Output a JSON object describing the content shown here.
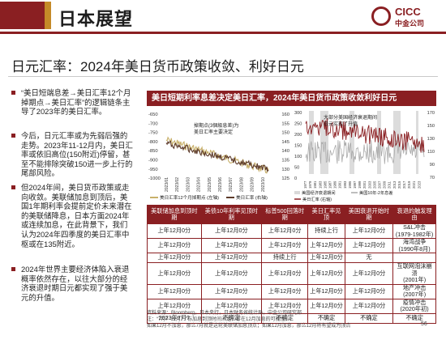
{
  "header": {
    "title": "日本展望",
    "logo_en": "CICC",
    "logo_cn": "中金公司"
  },
  "subtitle": "日元汇率：2024年美日货币政策收敛、利好日元",
  "bullets": [
    "“美日短端息差→美日汇率12个月掉期点→美日汇率”的逻辑链条主导了2023年的美日汇率。",
    "今后，日元汇率或为先弱后强的走势。2023年11-12月内，美日汇率或依旧高位(150附近)停留，甚至不能排除突破150进一步上行的尾部风险。",
    "但2024年间，美日货币政策或走向收敛。美联储加息到顶后，美国1年期利率会提前定价未来潜在的美联储降息，日本方面2024年或连续加息，在此背景下，我们认为2024年四季度的美日汇率中枢或在135附近。",
    "2024年世界主要经济体陷入衰退概率依然存在，以往大部分的经济衰退时期日元都实现了强于美元的升值。"
  ],
  "panel_title": "美日短期利率息差决定美日汇率，2024年美日货币政策收敛利好日元",
  "left_chart": {
    "ylabel_left": [
      "-650",
      "-700",
      "-750",
      "-800",
      "-850",
      "-900",
      "-950",
      "-1000"
    ],
    "ylabel_right": [
      "160",
      "155",
      "150",
      "145",
      "140",
      "135",
      "130",
      "125"
    ],
    "xticks": [
      "2023/01",
      "2023/02",
      "2023/03",
      "2023/04",
      "2023/05",
      "2023/06",
      "2023/07",
      "2023/08",
      "2023/09",
      "2023/10"
    ],
    "annotation": "掉期点(3個級息差)为美日汇率主要决定",
    "legend": [
      "美日汇率12个月掉期点 (左轴)",
      "美日汇率 (右轴)"
    ],
    "colors": {
      "swap": "#c8b06a",
      "fx": "#5c3a2a"
    }
  },
  "right_chart": {
    "yleft": [
      "300",
      "250",
      "200",
      "150",
      "100",
      "50",
      "0"
    ],
    "yright": [
      "170",
      "150",
      "130",
      "110",
      "90",
      "70"
    ],
    "annotation": "大部分美国经济衰退期间日元实现了升值",
    "legend": [
      "美国经济衰退期间",
      "美国10年-2年息差",
      "美日汇率 (右轴)"
    ],
    "xticks": [
      "1977",
      "1979",
      "1981",
      "1983",
      "1985",
      "1987",
      "1989",
      "1991",
      "1993",
      "1995",
      "1997",
      "1999",
      "2001",
      "2003",
      "2005",
      "2007",
      "2009",
      "2011",
      "2013",
      "2015",
      "2017",
      "2019",
      "2021",
      "2023"
    ]
  },
  "table": {
    "headers": [
      "美联储加息到顶时期",
      "美债10年利率见顶时期",
      "标普500回落时期",
      "美日汇率见顶",
      "美国衰退开始时期",
      "衰退的触发理由"
    ],
    "rows": [
      [
        "上年12月0分",
        "上年12月0分",
        "上年12月0分",
        "持续上行",
        "上年12月0分",
        "S&L冲击\n(1979-1982年)"
      ],
      [
        "上年12月0分",
        "上年12月0分",
        "上年12月0分",
        "上年12月0分",
        "上年12月0分",
        "海湾战争\n(1990年8月)"
      ],
      [
        "上年12月0分",
        "上年12月0分",
        "持续上行",
        "上年12月0分",
        "无",
        ""
      ],
      [
        "上年12月0分",
        "上年12月0分",
        "上年12月0分",
        "上年12月0分",
        "上年12月0分",
        "互联网泡沫崩溃\n(2001年)"
      ],
      [
        "上年12月0分",
        "上年12月0分",
        "上年12月0分",
        "上年12月0分",
        "上年12月0分",
        "地产冲击\n(2007年)"
      ],
      [
        "上年12月0分",
        "上年12月0分",
        "上年12月0分",
        "上年12月0分",
        "上年12月0分",
        "疫情冲击\n(2020年初)"
      ],
      [
        "2023年7月?",
        "不确定",
        "不确定",
        "不确定",
        "不确定",
        "不确定"
      ]
    ]
  },
  "source_lines": [
    "资料来源：Bloomberg，日本央行，日本财务省统计局，中金公司研究部",
    "注：“7月？12月？”标加息到顶时间未定，存在12月加息的可能性。",
    "如果12月不加息，那么7月就是这轮美联储加息顶点；如果12月加息，那么12月将有望成为顶点"
  ],
  "page_number": "56"
}
